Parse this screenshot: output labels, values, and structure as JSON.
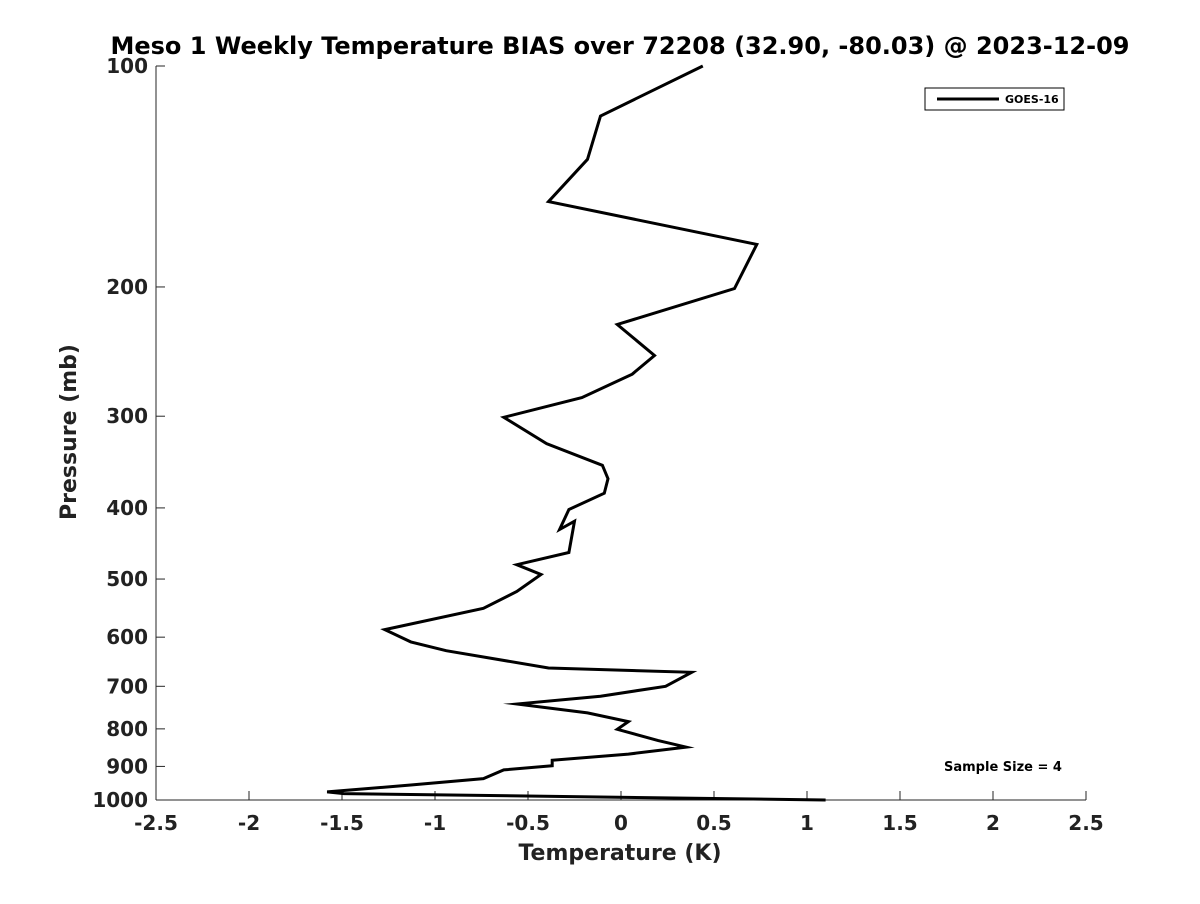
{
  "chart_data": {
    "type": "line",
    "title": "Meso 1 Weekly Temperature BIAS over 72208 (32.90, -80.03) @ 2023-12-09",
    "xlabel": "Temperature (K)",
    "ylabel": "Pressure (mb)",
    "xlim": [
      -2.5,
      2.5
    ],
    "ylim": [
      100,
      1000
    ],
    "y_scale": "log",
    "y_reversed": true,
    "grid": false,
    "legend_position": "top-right",
    "x_ticks": [
      -2.5,
      -2,
      -1.5,
      -1,
      -0.5,
      0,
      0.5,
      1,
      1.5,
      2,
      2.5
    ],
    "x_tick_labels": [
      "-2.5",
      "-2",
      "-1.5",
      "-1",
      "-0.5",
      "0",
      "0.5",
      "1",
      "1.5",
      "2",
      "2.5"
    ],
    "y_ticks": [
      100,
      200,
      300,
      400,
      500,
      600,
      700,
      800,
      900,
      1000
    ],
    "y_tick_labels": [
      "100",
      "200",
      "300",
      "400",
      "500",
      "600",
      "700",
      "800",
      "900",
      "1000"
    ],
    "series": [
      {
        "name": "GOES-16",
        "color": "#000000",
        "x": [
          0.44,
          -0.11,
          -0.18,
          -0.39,
          0.73,
          0.61,
          -0.02,
          0.18,
          0.06,
          -0.21,
          -0.63,
          -0.4,
          -0.1,
          -0.07,
          -0.09,
          -0.28,
          -0.33,
          -0.25,
          -0.28,
          -0.56,
          -0.43,
          -0.56,
          -0.74,
          -1.27,
          -1.13,
          -0.94,
          -0.39,
          0.38,
          0.24,
          -0.11,
          -0.56,
          -0.18,
          0.04,
          -0.02,
          0.2,
          0.35,
          0.04,
          -0.37,
          -0.37,
          -0.63,
          -0.74,
          -1.13,
          -1.58,
          -1.49,
          1.1
        ],
        "y": [
          100,
          117,
          134,
          153,
          175,
          201,
          225,
          248,
          263,
          283,
          301,
          327,
          350,
          365,
          382,
          402,
          428,
          417,
          460,
          478,
          493,
          520,
          548,
          586,
          609,
          626,
          661,
          670,
          700,
          722,
          740,
          761,
          782,
          801,
          830,
          847,
          866,
          883,
          898,
          910,
          935,
          954,
          975,
          980,
          1000
        ]
      }
    ],
    "annotations": [
      "Sample Size = 4"
    ]
  }
}
